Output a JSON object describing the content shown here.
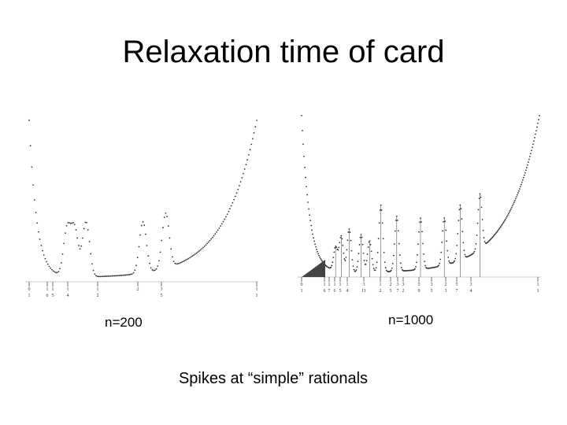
{
  "slide": {
    "title": "Relaxation time of card",
    "caption": "Spikes at “simple” rationals"
  },
  "chart_data": [
    {
      "type": "scatter",
      "label": "n=200",
      "xlim": [
        0,
        1
      ],
      "grid": false,
      "spikes_at": [
        0.1667,
        0.2,
        0.25,
        0.5,
        0.6
      ],
      "tick_numerators": [
        "0",
        "1",
        "1",
        "1",
        "1",
        "2",
        "3",
        "1"
      ],
      "tick_denominators": [
        "1",
        "6",
        "5",
        "4",
        "2",
        "",
        "5",
        "1"
      ]
    },
    {
      "type": "scatter",
      "label": "n=1000",
      "xlim": [
        0,
        1
      ],
      "grid": false,
      "spikes_at": [
        0.1429,
        0.1667,
        0.2,
        0.25,
        0.2857,
        0.3333,
        0.4,
        0.5,
        0.6,
        0.6667,
        0.75
      ],
      "tick_numerators": [
        "0",
        "1",
        "1",
        "1",
        "1",
        "1",
        "3",
        "1",
        "2",
        "3",
        "3",
        "5",
        "3",
        "2",
        "5",
        "3",
        "1"
      ],
      "tick_denominators": [
        "1",
        "6",
        "7",
        "6",
        "5",
        "4",
        "11",
        "2",
        "5",
        "7",
        "2",
        "9",
        "5",
        "3",
        "7",
        "4",
        "1"
      ]
    }
  ]
}
